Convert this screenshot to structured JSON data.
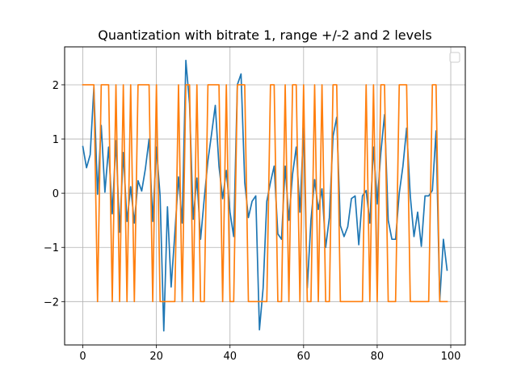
{
  "chart_data": {
    "type": "line",
    "title": "Quantization with bitrate 1, range +/-2 and 2 levels",
    "xlabel": "",
    "ylabel": "",
    "xlim": [
      -4.95,
      103.95
    ],
    "ylim": [
      -2.8,
      2.7
    ],
    "xticks": [
      0,
      20,
      40,
      60,
      80,
      100
    ],
    "yticks": [
      -2,
      -1,
      0,
      1,
      2
    ],
    "ytick_labels": [
      "−2",
      "−1",
      "0",
      "1",
      "2"
    ],
    "grid": true,
    "legend": {
      "placement": "upper right",
      "entries": []
    },
    "x": [
      0,
      1,
      2,
      3,
      4,
      5,
      6,
      7,
      8,
      9,
      10,
      11,
      12,
      13,
      14,
      15,
      16,
      17,
      18,
      19,
      20,
      21,
      22,
      23,
      24,
      25,
      26,
      27,
      28,
      29,
      30,
      31,
      32,
      33,
      34,
      35,
      36,
      37,
      38,
      39,
      40,
      41,
      42,
      43,
      44,
      45,
      46,
      47,
      48,
      49,
      50,
      51,
      52,
      53,
      54,
      55,
      56,
      57,
      58,
      59,
      60,
      61,
      62,
      63,
      64,
      65,
      66,
      67,
      68,
      69,
      70,
      71,
      72,
      73,
      74,
      75,
      76,
      77,
      78,
      79,
      80,
      81,
      82,
      83,
      84,
      85,
      86,
      87,
      88,
      89,
      90,
      91,
      92,
      93,
      94,
      95,
      96,
      97,
      98,
      99
    ],
    "series": [
      {
        "color": "#1f77b4",
        "values": [
          0.86,
          0.47,
          0.71,
          1.95,
          -0.02,
          1.25,
          0.02,
          0.85,
          -0.38,
          0.97,
          -0.72,
          0.75,
          -0.52,
          0.12,
          -0.55,
          0.23,
          0.04,
          0.45,
          1.0,
          -0.52,
          0.85,
          -0.05,
          -2.54,
          -0.25,
          -1.73,
          -0.75,
          0.3,
          -0.55,
          2.45,
          1.65,
          -0.48,
          0.28,
          -0.85,
          -0.1,
          0.6,
          1.1,
          1.62,
          0.5,
          -0.1,
          0.42,
          -0.35,
          -0.8,
          2.0,
          2.2,
          0.2,
          -0.45,
          -0.15,
          -0.05,
          -2.52,
          -1.75,
          -0.15,
          0.2,
          0.5,
          -0.75,
          -0.85,
          0.5,
          -0.5,
          0.35,
          0.85,
          -0.35,
          1.2,
          -1.75,
          -0.5,
          0.25,
          -0.3,
          0.08,
          -1.0,
          -0.45,
          1.05,
          1.4,
          -0.6,
          -0.8,
          -0.62,
          -0.1,
          -0.05,
          -0.95,
          -0.05,
          0.05,
          -0.55,
          0.85,
          -0.2,
          0.75,
          1.45,
          -0.5,
          -0.85,
          -0.85,
          0.0,
          0.5,
          1.2,
          -0.05,
          -0.8,
          -0.35,
          -0.98,
          -0.05,
          -0.05,
          0.05,
          1.15,
          -1.98,
          -0.85,
          -1.42
        ]
      },
      {
        "color": "#ff7f0e",
        "values": [
          2,
          2,
          2,
          2,
          -2,
          2,
          2,
          2,
          -2,
          2,
          -2,
          2,
          -2,
          2,
          -2,
          2,
          2,
          2,
          2,
          -2,
          2,
          -2,
          -2,
          -2,
          -2,
          -2,
          2,
          -2,
          2,
          2,
          -2,
          2,
          -2,
          -2,
          2,
          2,
          2,
          2,
          -2,
          2,
          -2,
          -2,
          2,
          2,
          2,
          -2,
          -2,
          -2,
          -2,
          -2,
          -2,
          2,
          2,
          -2,
          -2,
          2,
          -2,
          2,
          2,
          -2,
          2,
          -2,
          -2,
          2,
          -2,
          2,
          -2,
          -2,
          2,
          2,
          -2,
          -2,
          -2,
          -2,
          -2,
          -2,
          -2,
          2,
          -2,
          2,
          -2,
          2,
          2,
          -2,
          -2,
          -2,
          2,
          2,
          2,
          -2,
          -2,
          -2,
          -2,
          -2,
          -2,
          2,
          2,
          -2,
          -2,
          -2
        ]
      }
    ]
  }
}
